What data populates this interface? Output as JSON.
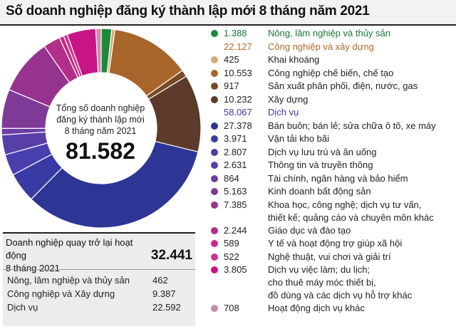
{
  "title": "Số doanh nghiệp đăng ký thành lập mới 8 tháng năm 2021",
  "center": {
    "caption_line1": "Tổng số doanh nghiệp",
    "caption_line2": "đăng ký thành lập mới",
    "caption_line3": "8 tháng năm 2021",
    "total": "81.582"
  },
  "chart_data": {
    "type": "pie",
    "title": "Số doanh nghiệp đăng ký thành lập mới 8 tháng năm 2021",
    "total": 81582,
    "categories": [
      "Nông, lâm nghiệp và thủy sản",
      "Khai khoáng",
      "Công nghiệp chế biến, chế tạo",
      "Sản xuất phân phối, điện, nước, gas",
      "Xây dựng",
      "Bán buôn; bán lẻ; sửa chữa ô tô, xe máy",
      "Vận tải kho bãi",
      "Dịch vụ lưu trú và ăn uống",
      "Thông tin và truyền thông",
      "Tài chính, ngân hàng và bảo hiểm",
      "Kinh doanh bất động sản",
      "Khoa học, công nghệ; dịch vụ tư vấn, thiết kế; quảng cáo và chuyên môn khác",
      "Giáo dục và đào tạo",
      "Y tế và hoạt động trợ giúp xã hội",
      "Nghệ thuật, vui chơi và giải trí",
      "Dịch vụ việc làm; du lịch; cho thuê máy móc thiết bị, đồ dùng và các dịch vụ hỗ trợ khác",
      "Hoạt động dịch vụ khác"
    ],
    "values": [
      1388,
      425,
      10553,
      917,
      10232,
      27378,
      3971,
      2807,
      2631,
      864,
      5163,
      7385,
      2244,
      589,
      522,
      3805,
      708
    ],
    "colors": [
      "#1a8a3c",
      "#d3ab7a",
      "#a8652a",
      "#7a4a28",
      "#5c3b2a",
      "#2d3595",
      "#3a3aa4",
      "#4a3fae",
      "#583fa8",
      "#6c3ea2",
      "#7f3a98",
      "#96338e",
      "#b12f88",
      "#c42c86",
      "#d23390",
      "#c71585",
      "#cf8aa6"
    ],
    "groups": [
      {
        "name": "Nông, lâm nghiệp và thủy sản",
        "value": 1388
      },
      {
        "name": "Công nghiệp và xây dựng",
        "value": 22127
      },
      {
        "name": "Dịch vụ",
        "value": 58067
      }
    ]
  },
  "legend": [
    {
      "value": "1.388",
      "label": "Nông, lâm nghiệp và thủy sản",
      "color": "#1a8a3c",
      "text_color": "#1a7a35",
      "dot": true
    },
    {
      "value": "22.127",
      "label": "Công nghiệp và xây dựng",
      "color": "#b06a2a",
      "text_color": "#b06a2a",
      "dot": false
    },
    {
      "value": "425",
      "label": "Khai khoáng",
      "color": "#d3ab7a",
      "text_color": "#222",
      "dot": true
    },
    {
      "value": "10.553",
      "label": "Công nghiệp chế biến, chế tạo",
      "color": "#a8652a",
      "text_color": "#222",
      "dot": true
    },
    {
      "value": "917",
      "label": "Sản xuất phân phối, điện, nước, gas",
      "color": "#7a4a28",
      "text_color": "#222",
      "dot": true
    },
    {
      "value": "10.232",
      "label": "Xây dựng",
      "color": "#5c3b2a",
      "text_color": "#222",
      "dot": true
    },
    {
      "value": "58.067",
      "label": "Dịch vụ",
      "color": "#3a3aa4",
      "text_color": "#3a3aa4",
      "dot": false
    },
    {
      "value": "27.378",
      "label": "Bán buôn; bán lẻ; sửa chữa ô tô, xe máy",
      "color": "#2d3595",
      "text_color": "#222",
      "dot": true
    },
    {
      "value": "3.971",
      "label": "Vận tải kho bãi",
      "color": "#3a3aa4",
      "text_color": "#222",
      "dot": true
    },
    {
      "value": "2.807",
      "label": "Dịch vụ lưu trú và ăn uống",
      "color": "#4a3fae",
      "text_color": "#222",
      "dot": true
    },
    {
      "value": "2.631",
      "label": "Thông tin và truyền thông",
      "color": "#583fa8",
      "text_color": "#222",
      "dot": true
    },
    {
      "value": "864",
      "label": "Tài chính, ngân hàng và bảo hiểm",
      "color": "#6c3ea2",
      "text_color": "#222",
      "dot": true
    },
    {
      "value": "5.163",
      "label": "Kinh doanh bất động sản",
      "color": "#7f3a98",
      "text_color": "#222",
      "dot": true
    },
    {
      "value": "7.385",
      "label": "Khoa học, công nghệ; dịch vụ tư vấn,",
      "label2": "thiết kế; quảng cáo và chuyên môn khác",
      "color": "#96338e",
      "text_color": "#222",
      "dot": true
    },
    {
      "value": "2.244",
      "label": "Giáo dục và đào tạo",
      "color": "#b12f88",
      "text_color": "#222",
      "dot": true
    },
    {
      "value": "589",
      "label": "Y tế và hoạt động trợ giúp xã hội",
      "color": "#c42c86",
      "text_color": "#222",
      "dot": true
    },
    {
      "value": "522",
      "label": "Nghệ thuật, vui chơi và giải trí",
      "color": "#d23390",
      "text_color": "#222",
      "dot": true
    },
    {
      "value": "3.805",
      "label": "Dịch vụ việc làm; du lịch;",
      "label2": "cho thuê máy móc thiết bị,",
      "label3": "đồ dùng và các dịch vụ hỗ trợ khác",
      "color": "#c71585",
      "text_color": "#222",
      "dot": true
    },
    {
      "value": "708",
      "label": "Hoạt động dịch vụ khác",
      "color": "#cf8aa6",
      "text_color": "#222",
      "dot": true
    }
  ],
  "returning": {
    "label_line1": "Doanh nghiệp quay trở lại hoạt động",
    "label_line2": "8 tháng 2021",
    "total": "32.441",
    "rows": [
      {
        "label": "Nông, lâm nghiệp và thủy sản",
        "value": "462"
      },
      {
        "label": "Công nghiệp và Xây dựng",
        "value": "9.387"
      },
      {
        "label": "Dịch vụ",
        "value": "22.592"
      }
    ]
  }
}
